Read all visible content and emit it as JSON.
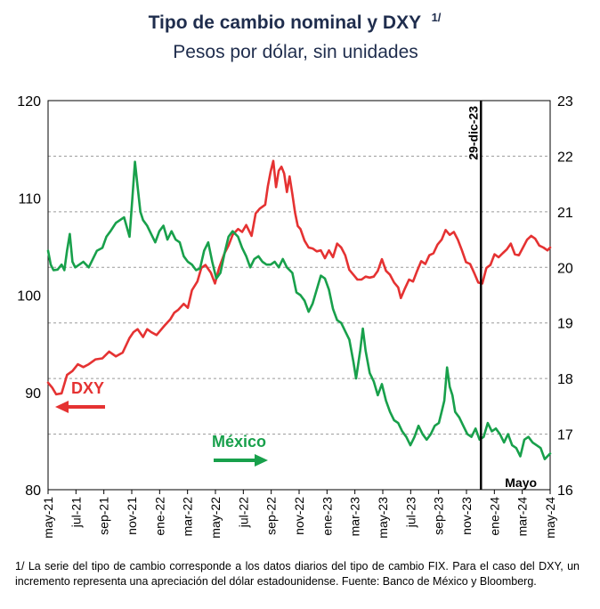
{
  "chart_data": {
    "type": "line",
    "title": "Tipo de cambio nominal y DXY",
    "title_superscript": "1/",
    "subtitle": "Pesos por dólar, sin unidades",
    "left_axis": {
      "min": 80,
      "max": 120,
      "ticks": [
        "80",
        "90",
        "100",
        "110",
        "120"
      ]
    },
    "right_axis": {
      "min": 16,
      "max": 23,
      "ticks": [
        "16",
        "17",
        "18",
        "19",
        "20",
        "21",
        "22",
        "23"
      ]
    },
    "x_ticks": [
      "may-21",
      "jul-21",
      "sep-21",
      "nov-21",
      "ene-22",
      "mar-22",
      "may-22",
      "jul-22",
      "sep-22",
      "nov-22",
      "ene-23",
      "mar-23",
      "may-23",
      "jul-23",
      "sep-23",
      "nov-23",
      "ene-24",
      "mar-24",
      "may-24"
    ],
    "x_range": [
      0,
      37
    ],
    "vline": {
      "x": 31.9,
      "label": "29-dic-23"
    },
    "annotation_end": "Mayo",
    "series": [
      {
        "name": "DXY",
        "label": "DXY",
        "axis": "left",
        "color": "#e53232",
        "arrow": "left",
        "points": [
          [
            0,
            91
          ],
          [
            0.3,
            90.5
          ],
          [
            0.6,
            89.8
          ],
          [
            1,
            89.9
          ],
          [
            1.4,
            91.8
          ],
          [
            1.8,
            92.2
          ],
          [
            2.2,
            92.9
          ],
          [
            2.6,
            92.6
          ],
          [
            3,
            92.9
          ],
          [
            3.5,
            93.4
          ],
          [
            4,
            93.5
          ],
          [
            4.5,
            94.2
          ],
          [
            5,
            93.7
          ],
          [
            5.5,
            94.1
          ],
          [
            6,
            95.6
          ],
          [
            6.3,
            96.2
          ],
          [
            6.6,
            96.5
          ],
          [
            7,
            95.7
          ],
          [
            7.3,
            96.5
          ],
          [
            7.6,
            96.2
          ],
          [
            8,
            95.9
          ],
          [
            8.3,
            96.4
          ],
          [
            8.6,
            96.9
          ],
          [
            9,
            97.5
          ],
          [
            9.3,
            98.2
          ],
          [
            9.6,
            98.5
          ],
          [
            10,
            99.1
          ],
          [
            10.3,
            98.7
          ],
          [
            10.6,
            100.5
          ],
          [
            11,
            101.4
          ],
          [
            11.3,
            102.8
          ],
          [
            11.6,
            103.1
          ],
          [
            12,
            102.3
          ],
          [
            12.3,
            101.2
          ],
          [
            12.6,
            102.8
          ],
          [
            13,
            104.3
          ],
          [
            13.3,
            105.1
          ],
          [
            13.6,
            106.2
          ],
          [
            14,
            106.8
          ],
          [
            14.3,
            106.5
          ],
          [
            14.6,
            107.2
          ],
          [
            15,
            106.1
          ],
          [
            15.3,
            108.4
          ],
          [
            15.6,
            108.9
          ],
          [
            16,
            109.3
          ],
          [
            16.2,
            111.2
          ],
          [
            16.4,
            112.7
          ],
          [
            16.6,
            113.8
          ],
          [
            16.8,
            111.1
          ],
          [
            17,
            112.8
          ],
          [
            17.2,
            113.2
          ],
          [
            17.4,
            112.5
          ],
          [
            17.6,
            110.6
          ],
          [
            17.8,
            112.2
          ],
          [
            18,
            110.4
          ],
          [
            18.2,
            108.5
          ],
          [
            18.4,
            107.1
          ],
          [
            18.6,
            106.8
          ],
          [
            18.9,
            105.6
          ],
          [
            19.2,
            104.9
          ],
          [
            19.5,
            104.8
          ],
          [
            19.8,
            104.5
          ],
          [
            20.1,
            104.6
          ],
          [
            20.4,
            103.8
          ],
          [
            20.7,
            104.6
          ],
          [
            21,
            103.9
          ],
          [
            21.3,
            105.3
          ],
          [
            21.6,
            104.9
          ],
          [
            21.9,
            104.1
          ],
          [
            22.2,
            102.6
          ],
          [
            22.5,
            102.1
          ],
          [
            22.8,
            101.6
          ],
          [
            23.1,
            101.6
          ],
          [
            23.4,
            101.9
          ],
          [
            23.7,
            101.8
          ],
          [
            24,
            101.9
          ],
          [
            24.3,
            102.5
          ],
          [
            24.6,
            103.7
          ],
          [
            24.9,
            102.5
          ],
          [
            25.2,
            102.1
          ],
          [
            25.5,
            101.3
          ],
          [
            25.8,
            100.8
          ],
          [
            26,
            99.7
          ],
          [
            26.3,
            100.7
          ],
          [
            26.6,
            101.6
          ],
          [
            26.9,
            101.4
          ],
          [
            27.2,
            102.5
          ],
          [
            27.5,
            103.5
          ],
          [
            27.8,
            103.2
          ],
          [
            28.1,
            104.1
          ],
          [
            28.4,
            104.3
          ],
          [
            28.7,
            105.2
          ],
          [
            29,
            105.7
          ],
          [
            29.3,
            106.7
          ],
          [
            29.6,
            106.2
          ],
          [
            29.9,
            106.5
          ],
          [
            30.2,
            105.7
          ],
          [
            30.5,
            104.6
          ],
          [
            30.8,
            103.4
          ],
          [
            31.1,
            103.2
          ],
          [
            31.4,
            102.3
          ],
          [
            31.7,
            101.3
          ],
          [
            32,
            101.2
          ],
          [
            32.3,
            102.8
          ],
          [
            32.6,
            103.1
          ],
          [
            32.9,
            104.2
          ],
          [
            33.2,
            103.9
          ],
          [
            33.5,
            104.3
          ],
          [
            33.8,
            104.7
          ],
          [
            34.1,
            105.3
          ],
          [
            34.4,
            104.2
          ],
          [
            34.7,
            104.1
          ],
          [
            35,
            104.9
          ],
          [
            35.3,
            105.7
          ],
          [
            35.6,
            106.1
          ],
          [
            35.9,
            105.8
          ],
          [
            36.2,
            105.1
          ],
          [
            36.5,
            104.9
          ],
          [
            36.8,
            104.6
          ],
          [
            37,
            104.9
          ]
        ]
      },
      {
        "name": "México",
        "label": "México",
        "axis": "right",
        "color": "#18a04b",
        "arrow": "right",
        "points": [
          [
            0,
            20.3
          ],
          [
            0.2,
            20.05
          ],
          [
            0.4,
            19.95
          ],
          [
            0.7,
            19.96
          ],
          [
            1,
            20.05
          ],
          [
            1.2,
            19.95
          ],
          [
            1.4,
            20.3
          ],
          [
            1.6,
            20.6
          ],
          [
            1.8,
            20.1
          ],
          [
            2,
            20.0
          ],
          [
            2.3,
            20.05
          ],
          [
            2.6,
            20.1
          ],
          [
            3,
            20.0
          ],
          [
            3.3,
            20.15
          ],
          [
            3.6,
            20.3
          ],
          [
            4,
            20.35
          ],
          [
            4.3,
            20.55
          ],
          [
            4.6,
            20.65
          ],
          [
            5,
            20.8
          ],
          [
            5.3,
            20.85
          ],
          [
            5.6,
            20.9
          ],
          [
            6,
            20.55
          ],
          [
            6.2,
            21.2
          ],
          [
            6.4,
            21.9
          ],
          [
            6.6,
            21.45
          ],
          [
            6.8,
            21.0
          ],
          [
            7,
            20.85
          ],
          [
            7.3,
            20.75
          ],
          [
            7.6,
            20.6
          ],
          [
            7.9,
            20.45
          ],
          [
            8.2,
            20.65
          ],
          [
            8.5,
            20.75
          ],
          [
            8.8,
            20.5
          ],
          [
            9.1,
            20.65
          ],
          [
            9.4,
            20.5
          ],
          [
            9.7,
            20.45
          ],
          [
            10,
            20.2
          ],
          [
            10.3,
            20.1
          ],
          [
            10.6,
            20.05
          ],
          [
            10.9,
            19.95
          ],
          [
            11.2,
            19.98
          ],
          [
            11.5,
            20.3
          ],
          [
            11.8,
            20.45
          ],
          [
            12.1,
            20.1
          ],
          [
            12.4,
            19.8
          ],
          [
            12.7,
            19.9
          ],
          [
            13,
            20.25
          ],
          [
            13.3,
            20.55
          ],
          [
            13.6,
            20.65
          ],
          [
            14,
            20.55
          ],
          [
            14.3,
            20.35
          ],
          [
            14.6,
            20.2
          ],
          [
            14.9,
            20.0
          ],
          [
            15.2,
            20.15
          ],
          [
            15.5,
            20.2
          ],
          [
            15.8,
            20.1
          ],
          [
            16.1,
            20.05
          ],
          [
            16.4,
            20.05
          ],
          [
            16.7,
            20.1
          ],
          [
            17,
            20.0
          ],
          [
            17.3,
            20.15
          ],
          [
            17.6,
            20.0
          ],
          [
            18,
            19.9
          ],
          [
            18.3,
            19.55
          ],
          [
            18.6,
            19.5
          ],
          [
            18.9,
            19.4
          ],
          [
            19.2,
            19.2
          ],
          [
            19.5,
            19.35
          ],
          [
            19.8,
            19.6
          ],
          [
            20.1,
            19.85
          ],
          [
            20.4,
            19.8
          ],
          [
            20.7,
            19.6
          ],
          [
            21,
            19.25
          ],
          [
            21.3,
            19.05
          ],
          [
            21.6,
            19.0
          ],
          [
            21.9,
            18.85
          ],
          [
            22.2,
            18.7
          ],
          [
            22.5,
            18.3
          ],
          [
            22.7,
            18.0
          ],
          [
            23,
            18.5
          ],
          [
            23.2,
            18.9
          ],
          [
            23.4,
            18.5
          ],
          [
            23.7,
            18.1
          ],
          [
            24,
            17.95
          ],
          [
            24.3,
            17.7
          ],
          [
            24.6,
            17.9
          ],
          [
            24.9,
            17.6
          ],
          [
            25.2,
            17.4
          ],
          [
            25.5,
            17.25
          ],
          [
            25.8,
            17.2
          ],
          [
            26.1,
            17.05
          ],
          [
            26.4,
            16.95
          ],
          [
            26.7,
            16.8
          ],
          [
            27,
            16.95
          ],
          [
            27.3,
            17.15
          ],
          [
            27.6,
            17.0
          ],
          [
            27.9,
            16.9
          ],
          [
            28.2,
            17.0
          ],
          [
            28.5,
            17.15
          ],
          [
            28.8,
            17.2
          ],
          [
            29,
            17.4
          ],
          [
            29.2,
            17.6
          ],
          [
            29.4,
            18.2
          ],
          [
            29.6,
            17.85
          ],
          [
            29.8,
            17.7
          ],
          [
            30,
            17.4
          ],
          [
            30.3,
            17.3
          ],
          [
            30.6,
            17.15
          ],
          [
            30.9,
            17.0
          ],
          [
            31.2,
            16.95
          ],
          [
            31.5,
            17.1
          ],
          [
            31.8,
            16.9
          ],
          [
            32.1,
            16.95
          ],
          [
            32.4,
            17.2
          ],
          [
            32.7,
            17.05
          ],
          [
            33,
            17.1
          ],
          [
            33.3,
            17.0
          ],
          [
            33.6,
            16.85
          ],
          [
            33.9,
            17.0
          ],
          [
            34.2,
            16.8
          ],
          [
            34.5,
            16.75
          ],
          [
            34.8,
            16.6
          ],
          [
            35.1,
            16.9
          ],
          [
            35.4,
            16.95
          ],
          [
            35.7,
            16.85
          ],
          [
            36,
            16.8
          ],
          [
            36.3,
            16.75
          ],
          [
            36.6,
            16.55
          ],
          [
            37,
            16.65
          ]
        ]
      }
    ]
  },
  "footnote": "1/ La serie del tipo de cambio corresponde a los datos diarios del tipo de cambio FIX. Para el caso del DXY, un incremento representa una apreciación del dólar estadounidense. Fuente: Banco de México y Bloomberg."
}
